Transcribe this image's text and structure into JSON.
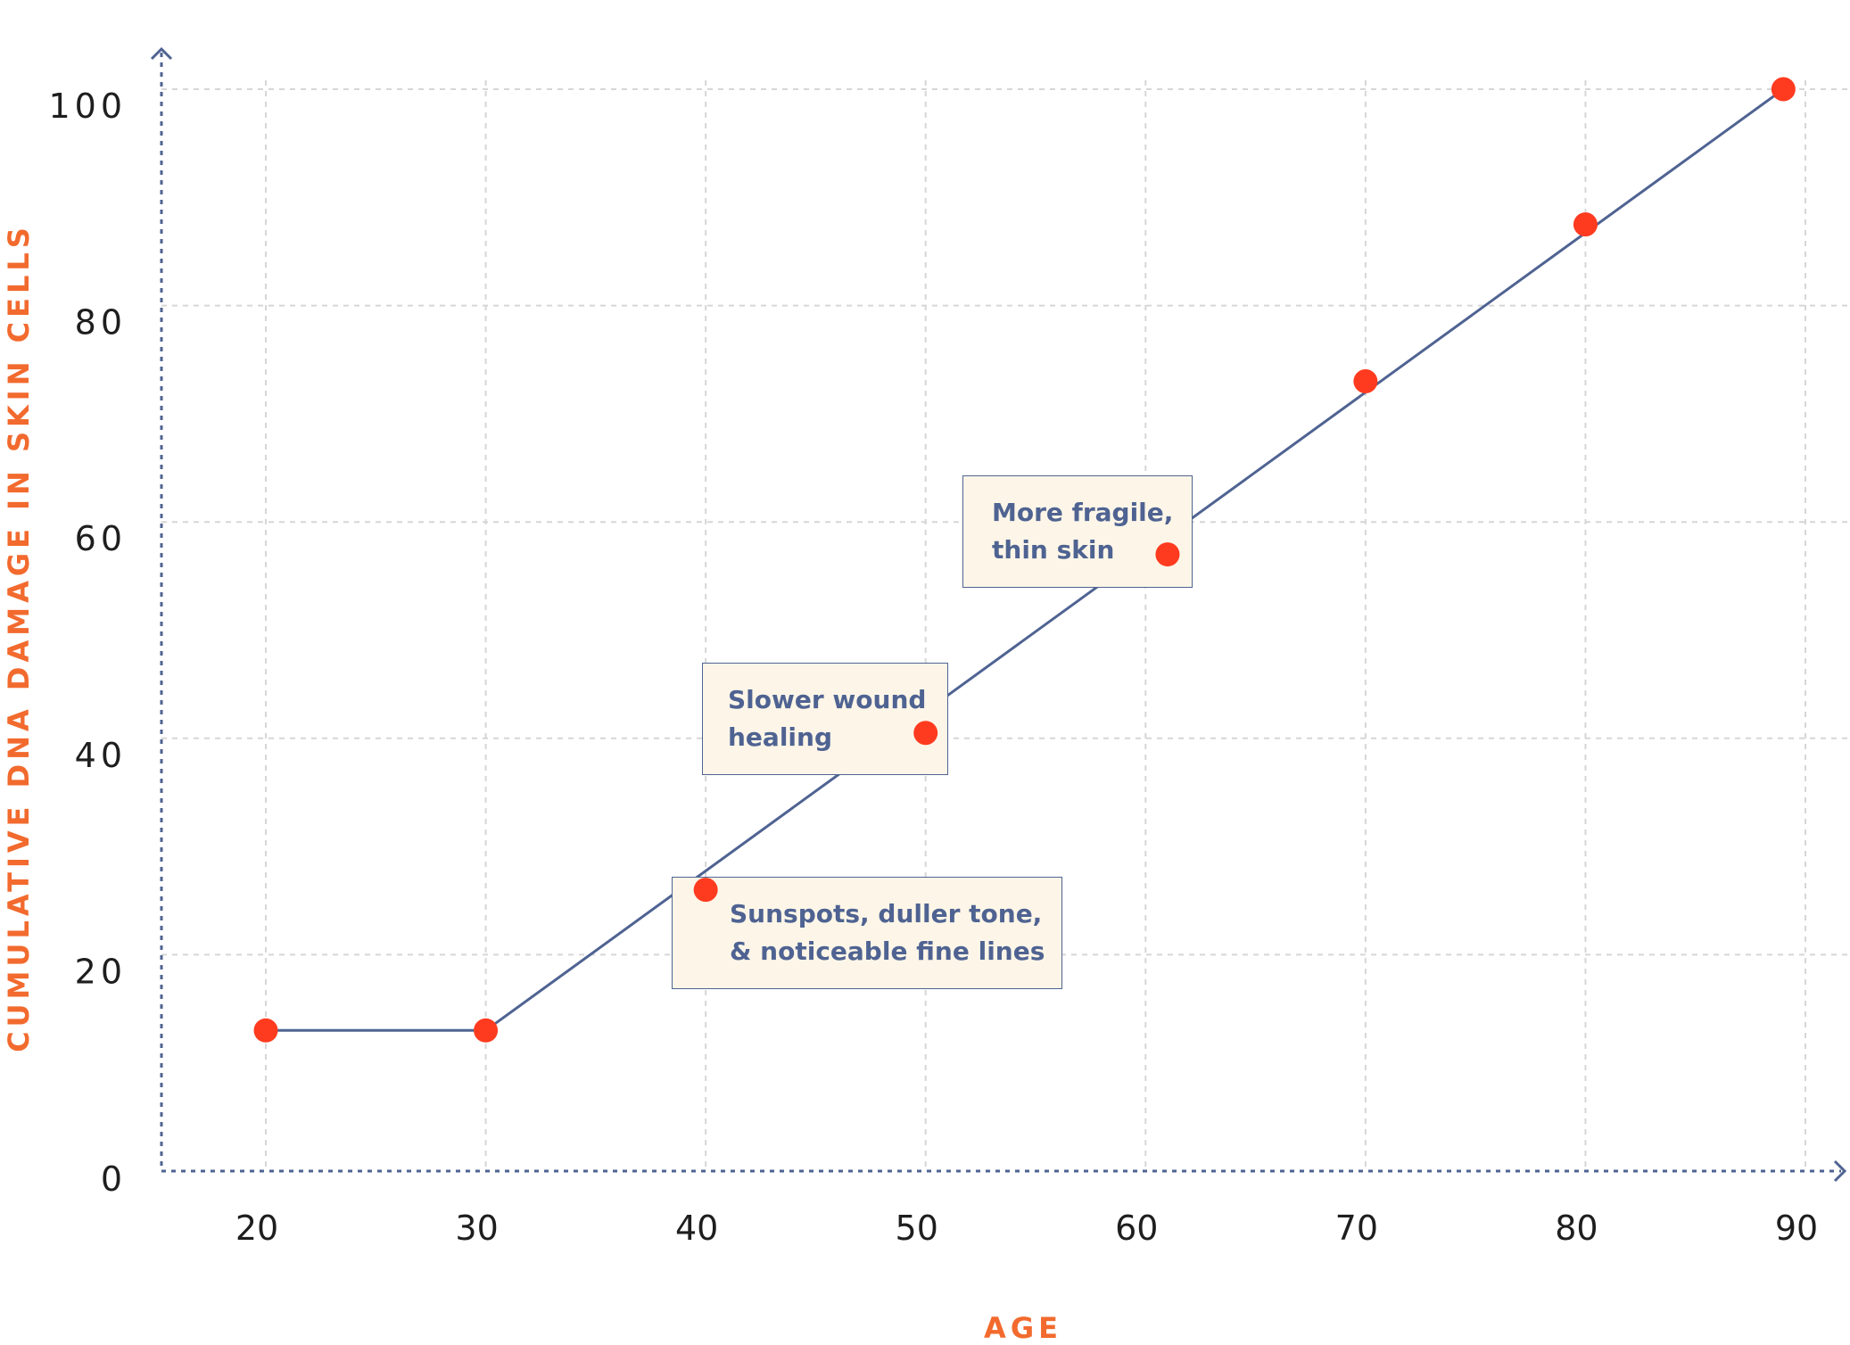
{
  "chart_data": {
    "type": "line",
    "title": "",
    "xlabel": "AGE",
    "ylabel": "CUMULATIVE DNA DAMAGE IN SKIN CELLS",
    "x_ticks": [
      "20",
      "30",
      "40",
      "50",
      "60",
      "70",
      "80",
      "90"
    ],
    "y_ticks": [
      "0",
      "20",
      "40",
      "60",
      "80",
      "100"
    ],
    "xlim": [
      15.5,
      91.5
    ],
    "ylim": [
      0,
      104
    ],
    "grid": true,
    "legend": "none",
    "series": [
      {
        "x": [
          20,
          30,
          40,
          50,
          61,
          70,
          80,
          89
        ],
        "y": [
          13,
          13,
          26,
          40.5,
          57,
          73,
          87.5,
          100
        ],
        "line_points": [
          {
            "x": 20,
            "y": 13
          },
          {
            "x": 30,
            "y": 13
          },
          {
            "x": 89,
            "y": 100
          }
        ],
        "line_color": "#4f6392",
        "marker_color": "#ff3b1f"
      }
    ],
    "annotations": [
      {
        "lines": [
          "Sunspots, duller tone,",
          "& noticeable fine lines"
        ],
        "x": 40,
        "y": 26
      },
      {
        "lines": [
          "Slower wound",
          "healing"
        ],
        "x": 50,
        "y": 40.5
      },
      {
        "lines": [
          "More fragile,",
          "thin skin"
        ],
        "x": 61,
        "y": 57
      }
    ],
    "colors": {
      "line": "#4f6392",
      "marker": "#ff3b1f",
      "axis": "#4f6392",
      "grid": "#d6d6d6",
      "axis_title": "#f26a2e",
      "annotation_bg": "#fdf6e8",
      "annotation_border": "#4f6392",
      "annotation_text": "#4f6392"
    }
  }
}
